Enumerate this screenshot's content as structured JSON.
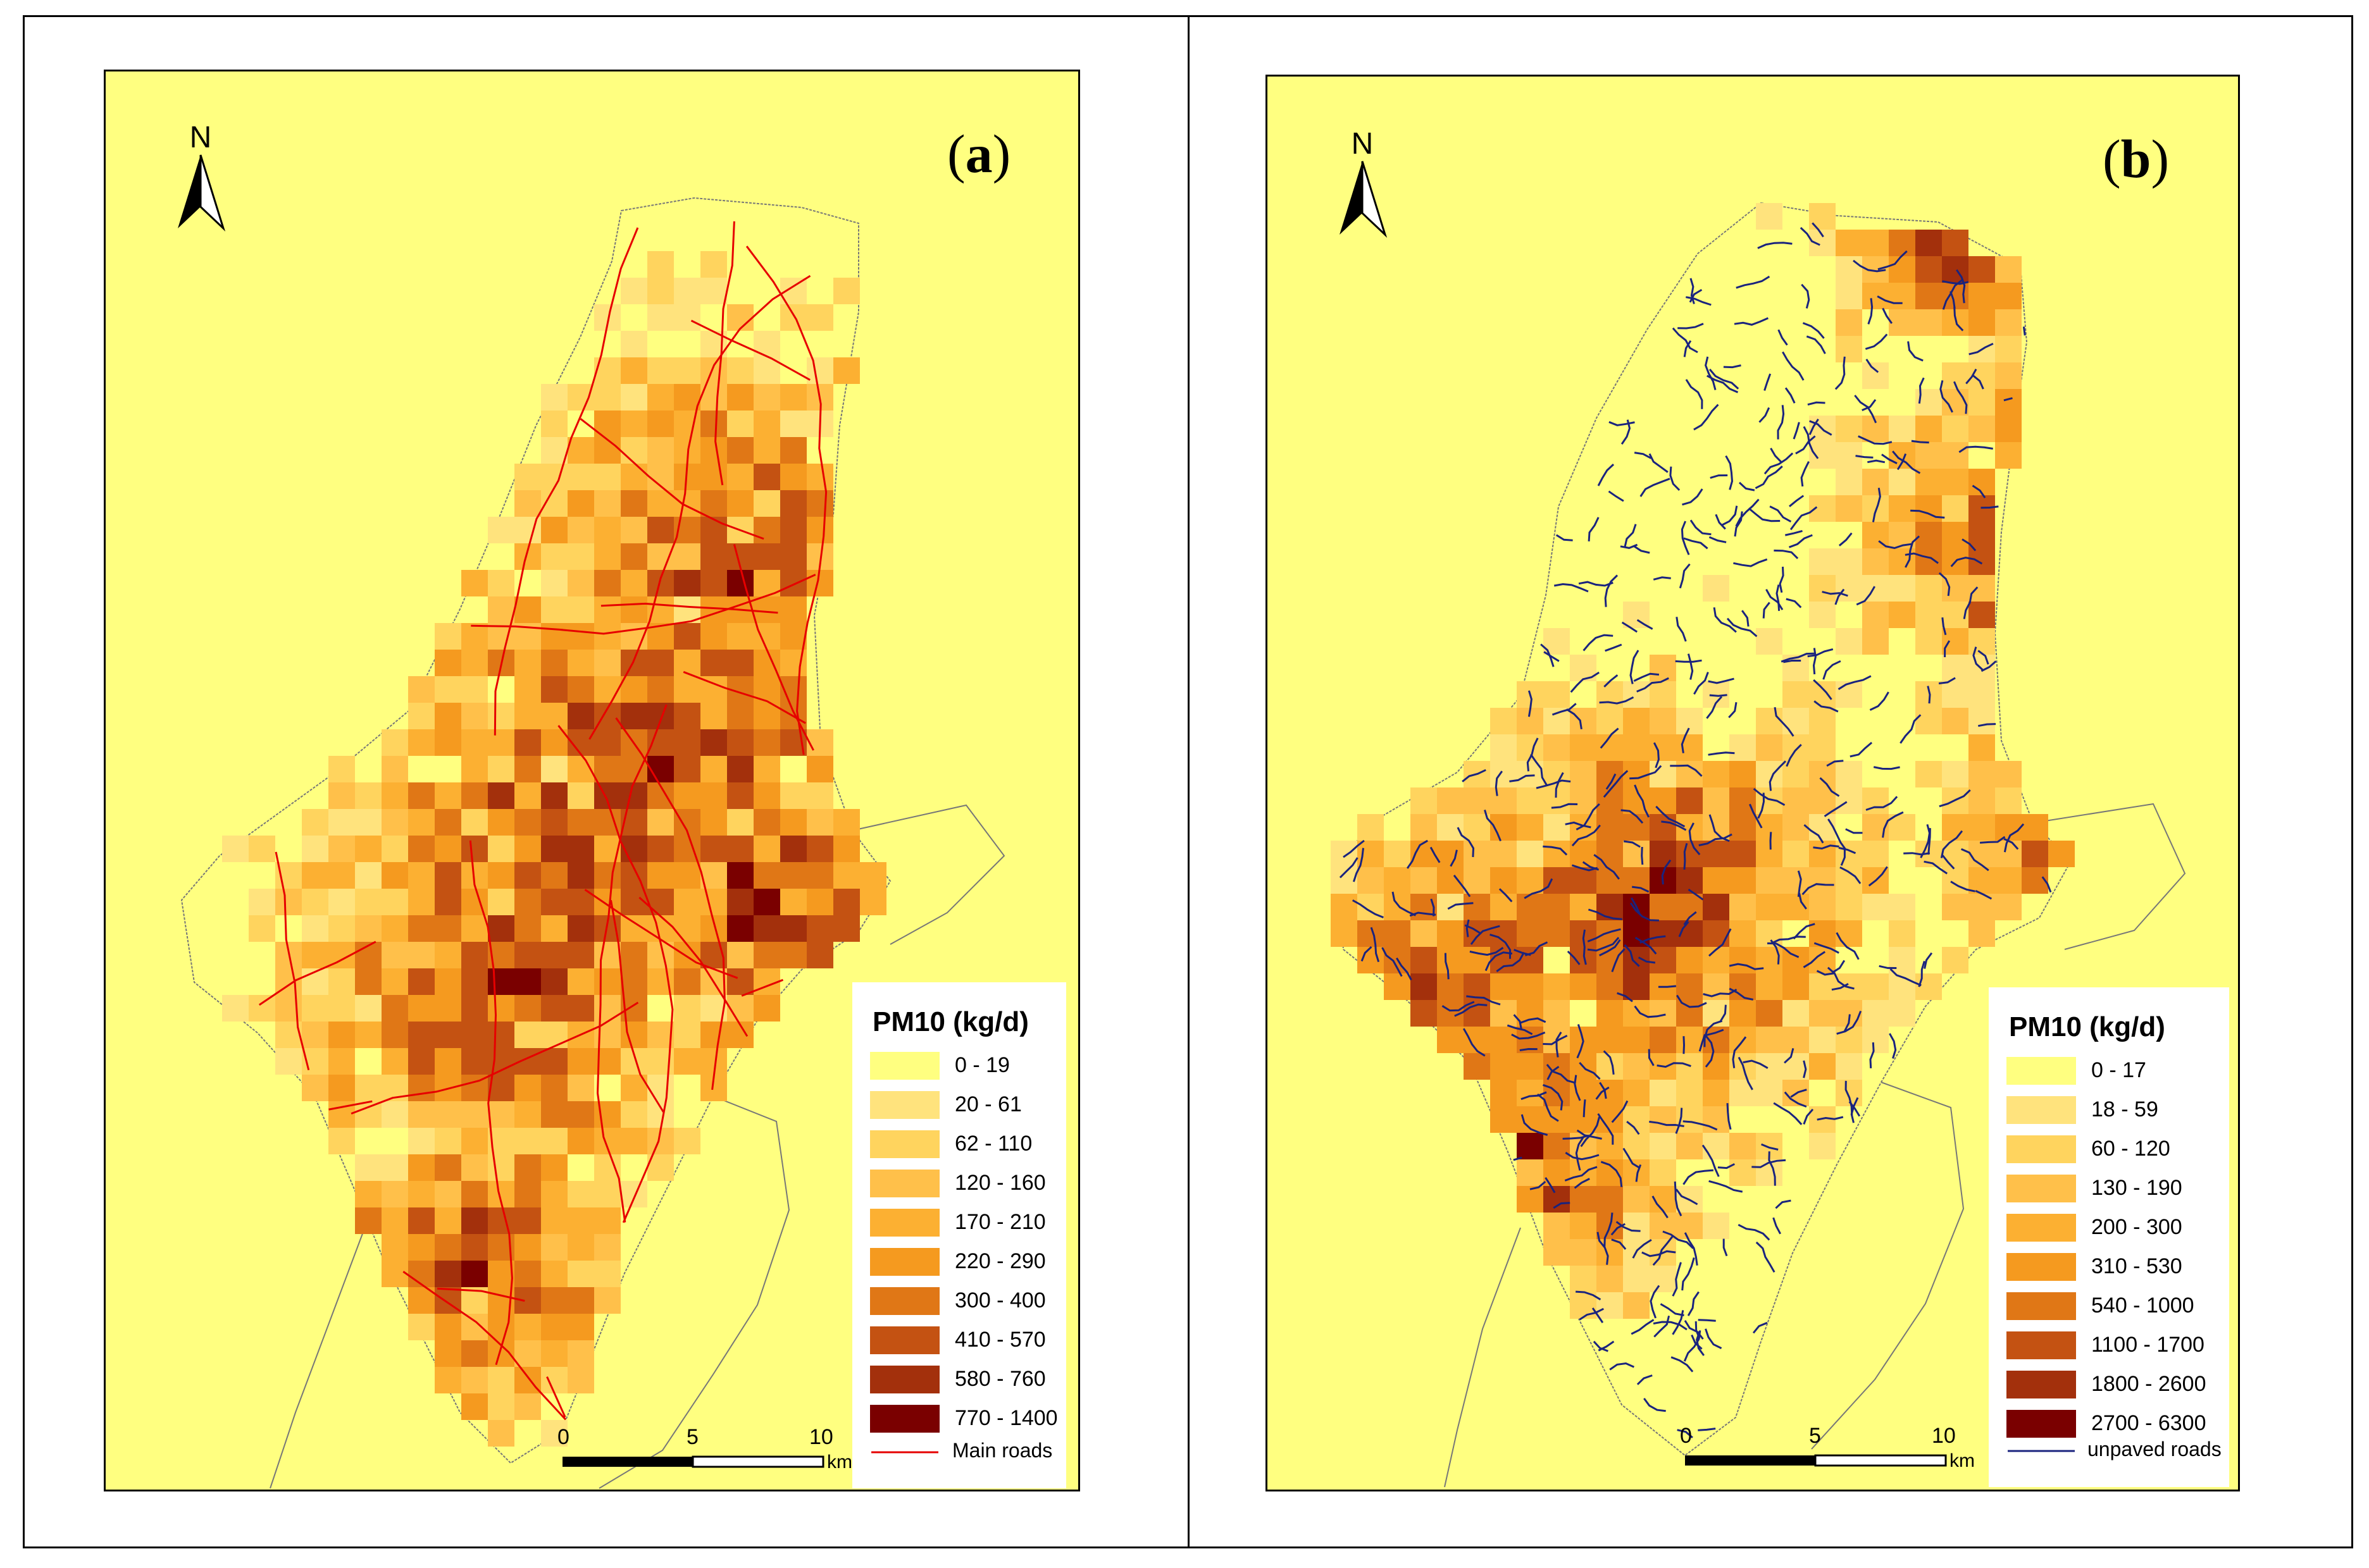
{
  "panels": [
    {
      "id": "a",
      "label": "a",
      "north_label": "N",
      "legend_title": "PM10 (kg/d)",
      "classes": [
        {
          "label": "0 - 19",
          "color": "#ffff80"
        },
        {
          "label": "20 - 61",
          "color": "#ffe37d"
        },
        {
          "label": "62 - 110",
          "color": "#ffd45e"
        },
        {
          "label": "120 - 160",
          "color": "#ffc04a"
        },
        {
          "label": "170 - 210",
          "color": "#fcb032"
        },
        {
          "label": "220 - 290",
          "color": "#f59a1f"
        },
        {
          "label": "300 - 400",
          "color": "#e07716"
        },
        {
          "label": "410 - 570",
          "color": "#c45212"
        },
        {
          "label": "580 - 760",
          "color": "#a3300c"
        },
        {
          "label": "770 - 1400",
          "color": "#7a0000"
        }
      ],
      "scale_ticks": [
        "0",
        "5",
        "10"
      ],
      "scale_unit": "km",
      "roads_label": "Main roads",
      "roads_color": "#e60000"
    },
    {
      "id": "b",
      "label": "b",
      "north_label": "N",
      "legend_title": "PM10 (kg/d)",
      "classes": [
        {
          "label": "0 - 17",
          "color": "#ffff80"
        },
        {
          "label": "18 - 59",
          "color": "#ffe37d"
        },
        {
          "label": "60 - 120",
          "color": "#ffd45e"
        },
        {
          "label": "130 - 190",
          "color": "#ffc04a"
        },
        {
          "label": "200 - 300",
          "color": "#fcb032"
        },
        {
          "label": "310 - 530",
          "color": "#f59a1f"
        },
        {
          "label": "540 - 1000",
          "color": "#e07716"
        },
        {
          "label": "1100 - 1700",
          "color": "#c45212"
        },
        {
          "label": "1800 - 2600",
          "color": "#a3300c"
        },
        {
          "label": "2700 - 6300",
          "color": "#7a0000"
        }
      ],
      "scale_ticks": [
        "0",
        "5",
        "10"
      ],
      "scale_unit": "km",
      "roads_label": "unpaved roads",
      "roads_color": "#1a237e"
    }
  ]
}
